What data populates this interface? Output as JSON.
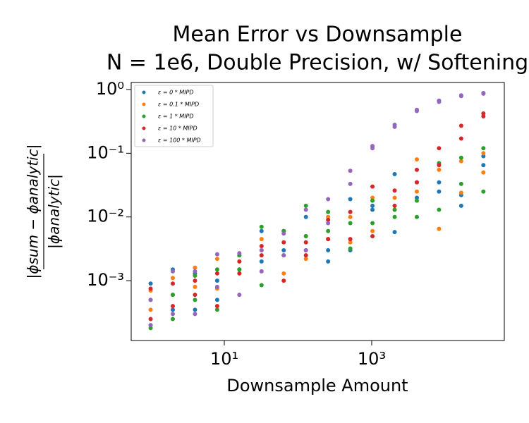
{
  "chart_data": {
    "type": "scatter",
    "title": [
      "Mean Error vs Downsample",
      "N = 1e6, Double Precision, w/ Softening"
    ],
    "xlabel": "Downsample Amount",
    "ylabel": {
      "numerator": "|ϕsum − ϕanalytic|",
      "denominator": "|ϕanalytic|"
    },
    "log_x": true,
    "log_y": true,
    "grid": false,
    "legend": "upper left",
    "xlim": [
      0.545,
      63000
    ],
    "ylim": [
      0.000115,
      1.29
    ],
    "xticks": [
      {
        "value": 10,
        "label": "10¹"
      },
      {
        "value": 1000,
        "label": "10³"
      }
    ],
    "yticks": [
      {
        "value": 0.001,
        "label": "10⁻³"
      },
      {
        "value": 0.01,
        "label": "10⁻²"
      },
      {
        "value": 0.1,
        "label": "10⁻¹"
      },
      {
        "value": 1,
        "label": "10⁰"
      }
    ],
    "x": [
      1,
      1,
      2,
      2,
      4,
      4,
      8,
      8,
      16,
      16,
      32,
      32,
      64,
      64,
      128,
      128,
      256,
      256,
      512,
      512,
      1024,
      1024,
      2048,
      2048,
      4096,
      4096,
      8192,
      8192,
      16384,
      16384,
      32768,
      32768
    ],
    "series": [
      {
        "name": "ε = 0 * MIPD",
        "color": "#1f77b4",
        "values": [
          0.0002,
          0.0009,
          0.00035,
          0.0015,
          0.00035,
          0.0013,
          0.0005,
          0.001,
          0.0015,
          0.0025,
          0.002,
          0.006,
          0.003,
          0.006,
          0.003,
          0.01,
          0.002,
          0.003,
          0.003,
          0.019,
          0.015,
          0.013,
          0.0058,
          0.047,
          0.02,
          0.035,
          0.025,
          0.035,
          0.015,
          0.022,
          0.065,
          0.09
        ]
      },
      {
        "name": "ε = 0.1 * MIPD",
        "color": "#ff7f0e",
        "values": [
          0.00035,
          0.0007,
          0.0006,
          0.0011,
          0.0008,
          0.0016,
          0.00075,
          0.0022,
          0.0013,
          0.002,
          0.003,
          0.0045,
          0.0013,
          0.006,
          0.0022,
          0.005,
          0.0045,
          0.01,
          0.004,
          0.01,
          0.006,
          0.02,
          0.013,
          0.02,
          0.025,
          0.08,
          0.0065,
          0.055,
          0.024,
          0.075,
          0.05,
          0.1
        ]
      },
      {
        "name": "ε = 1 * MIPD",
        "color": "#2ca02c",
        "values": [
          0.00018,
          0.0005,
          0.00025,
          0.0006,
          0.0005,
          0.0012,
          0.00035,
          0.0015,
          0.0015,
          0.0025,
          0.00085,
          0.007,
          0.0025,
          0.006,
          0.005,
          0.015,
          0.006,
          0.012,
          0.0032,
          0.008,
          0.008,
          0.018,
          0.01,
          0.013,
          0.01,
          0.018,
          0.013,
          0.07,
          0.033,
          0.085,
          0.025,
          0.12
        ]
      },
      {
        "name": "ε = 10 * MIPD",
        "color": "#d62728",
        "values": [
          0.00025,
          0.00075,
          0.0004,
          0.0009,
          0.0006,
          0.001,
          0.0004,
          0.0013,
          0.0013,
          0.002,
          0.0025,
          0.0035,
          0.001,
          0.004,
          0.0025,
          0.004,
          0.0045,
          0.009,
          0.0045,
          0.012,
          0.005,
          0.03,
          0.015,
          0.026,
          0.035,
          0.055,
          0.065,
          0.12,
          0.17,
          0.27,
          0.38,
          0.42
        ]
      },
      {
        "name": "ε = 100 * MIPD",
        "color": "#9467bd",
        "values": [
          0.0002,
          0.0005,
          0.0003,
          0.0014,
          0.0003,
          0.0014,
          0.0008,
          0.0026,
          0.0006,
          0.0027,
          0.0014,
          0.003,
          0.0025,
          0.0055,
          0.003,
          0.013,
          0.008,
          0.019,
          0.033,
          0.053,
          0.12,
          0.13,
          0.26,
          0.28,
          0.46,
          0.48,
          0.64,
          0.67,
          0.79,
          0.81,
          0.86,
          0.88
        ]
      }
    ]
  }
}
